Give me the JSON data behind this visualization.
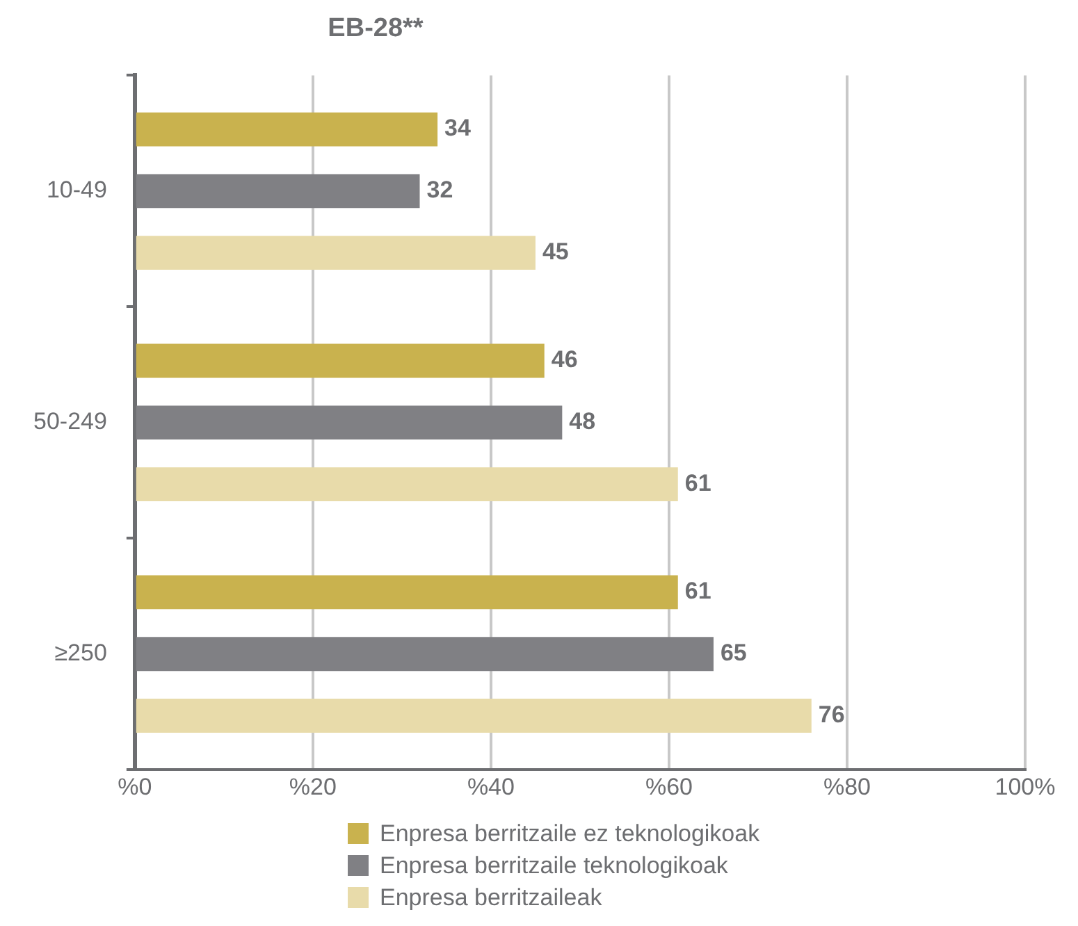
{
  "chart_data": {
    "type": "bar",
    "orientation": "horizontal",
    "title": "EB-28**",
    "categories": [
      "10-49",
      "50-249",
      "≥250"
    ],
    "series": [
      {
        "name": "Enpresa berritzaile ez teknologikoak",
        "color": "#c9b24e",
        "values": [
          34,
          46,
          61
        ]
      },
      {
        "name": "Enpresa berritzaile teknologikoak",
        "color": "#808084",
        "values": [
          32,
          48,
          65
        ]
      },
      {
        "name": "Enpresa berritzaileak",
        "color": "#e8dbaa",
        "values": [
          45,
          61,
          76
        ]
      }
    ],
    "xlim": [
      0,
      100
    ],
    "xticks": [
      {
        "value": 0,
        "label": "%0"
      },
      {
        "value": 20,
        "label": "%20"
      },
      {
        "value": 40,
        "label": "%40"
      },
      {
        "value": 60,
        "label": "%60"
      },
      {
        "value": 80,
        "label": "%80"
      },
      {
        "value": 100,
        "label": "100%"
      }
    ],
    "grid": "x",
    "legend": "bottom",
    "data_labels": true
  }
}
